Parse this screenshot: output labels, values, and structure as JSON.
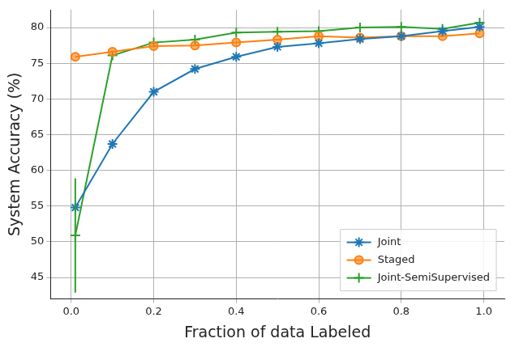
{
  "chart_data": {
    "type": "line",
    "x_label": "Fraction of data Labeled",
    "y_label": "System Accuracy (%)",
    "x": [
      0.01,
      0.1,
      0.2,
      0.3,
      0.4,
      0.5,
      0.6,
      0.7,
      0.8,
      0.9,
      0.99
    ],
    "series": [
      {
        "name": "Joint",
        "color": "#1f77b4",
        "marker": "star",
        "values": [
          54.8,
          63.7,
          71.0,
          74.2,
          75.9,
          77.3,
          77.8,
          78.4,
          78.8,
          79.5,
          80.1
        ]
      },
      {
        "name": "Staged",
        "color": "#ff7f0e",
        "marker": "circle",
        "values": [
          75.9,
          76.6,
          77.4,
          77.5,
          77.9,
          78.3,
          78.8,
          78.6,
          78.8,
          78.8,
          79.2
        ]
      },
      {
        "name": "Joint-SemiSupervised",
        "color": "#2ca02c",
        "marker": "plus",
        "values": [
          50.9,
          76.1,
          77.9,
          78.3,
          79.3,
          79.4,
          79.5,
          80.0,
          80.1,
          79.8,
          80.7
        ],
        "errors": [
          8.0,
          null,
          null,
          null,
          null,
          null,
          null,
          null,
          null,
          null,
          null
        ]
      }
    ],
    "xlim": [
      -0.05,
      1.05
    ],
    "xticks": [
      {
        "value": 0,
        "label": "0.0"
      },
      0.2,
      0.4,
      0.6,
      0.8,
      {
        "value": 1,
        "label": "1.0"
      }
    ],
    "ylim": [
      42,
      82.5
    ],
    "yticks": [
      45,
      50,
      55,
      60,
      65,
      70,
      75,
      80
    ],
    "grid": true,
    "legend": "lower right"
  }
}
